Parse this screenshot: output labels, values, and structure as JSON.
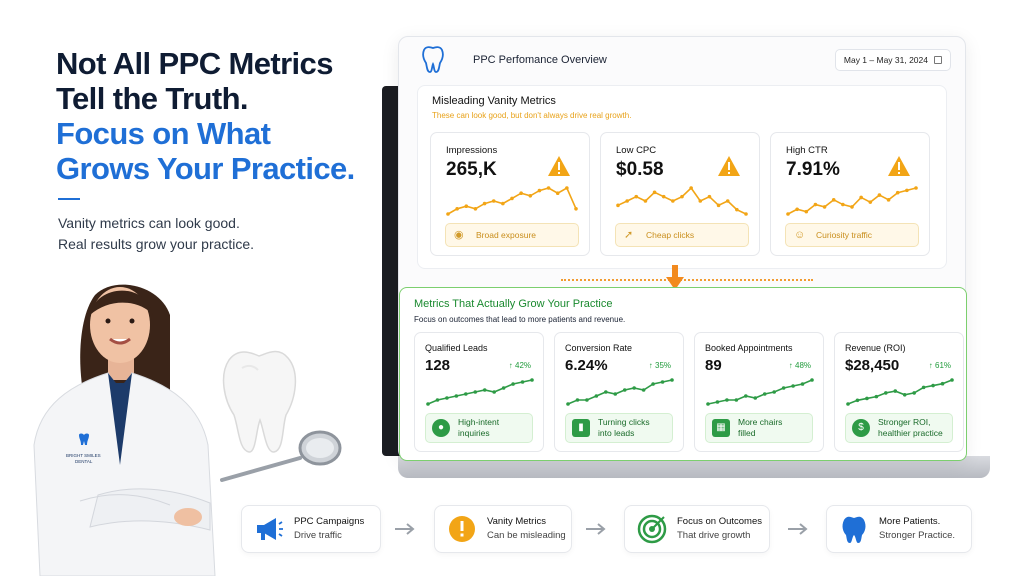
{
  "headline": {
    "line1": "Not All PPC Metrics",
    "line2": "Tell the Truth.",
    "line3": "Focus on What",
    "line4": "Grows Your Practice."
  },
  "subtext": {
    "line1": "Vanity metrics can look good.",
    "line2": "Real results grow your practice."
  },
  "coat_badge": {
    "line1": "BRIGHT SMILES",
    "line2": "DENTAL"
  },
  "dashboard": {
    "title": "PPC Perfomance Overview",
    "date_range": "May 1 – May 31, 2024",
    "vanity": {
      "title": "Misleading Vanity Metrics",
      "subtitle": "These can look good, but don't always drive real growth.",
      "cards": [
        {
          "label": "Impressions",
          "value": "265,K",
          "tag": "Broad exposure",
          "tag_icon": "eye-icon",
          "trend": [
            3,
            4,
            4.5,
            4,
            5,
            5.5,
            5,
            6,
            7,
            6.5,
            7.5,
            8,
            7,
            8,
            4
          ]
        },
        {
          "label": "Low CPC",
          "value": "$0.58",
          "tag": "Cheap clicks",
          "tag_icon": "cursor-icon",
          "trend": [
            4,
            5,
            6,
            5,
            7,
            6,
            5,
            6,
            8,
            5,
            6,
            4,
            5,
            3,
            2
          ]
        },
        {
          "label": "High CTR",
          "value": "7.91%",
          "tag": "Curiosity traffic",
          "tag_icon": "users-icon",
          "trend": [
            3,
            4,
            3.5,
            5,
            4.5,
            6,
            5,
            4.5,
            6.5,
            5.5,
            7,
            6,
            7.5,
            8,
            8.5
          ]
        }
      ]
    },
    "growth": {
      "title": "Metrics That Actually Grow Your Practice",
      "subtitle": "Focus on outcomes that lead to more patients and revenue.",
      "cards": [
        {
          "label": "Qualified Leads",
          "value": "128",
          "delta": "↑ 42%",
          "tag1": "High-intent",
          "tag2": "inquiries",
          "tag_icon": "person-icon",
          "trend": [
            2,
            3,
            3.5,
            4,
            4.5,
            5,
            5.5,
            5,
            6,
            7,
            7.5,
            8
          ]
        },
        {
          "label": "Conversion Rate",
          "value": "6.24%",
          "delta": "↑ 35%",
          "tag1": "Turning clicks",
          "tag2": "into leads",
          "tag_icon": "bar-chart-icon",
          "trend": [
            2,
            3,
            3,
            4,
            5,
            4.5,
            5.5,
            6,
            5.5,
            7,
            7.5,
            8
          ]
        },
        {
          "label": "Booked Appointments",
          "value": "89",
          "delta": "↑ 48%",
          "tag1": "More chairs",
          "tag2": "filled",
          "tag_icon": "calendar-icon",
          "trend": [
            2,
            2.5,
            3,
            3,
            4,
            3.5,
            4.5,
            5,
            6,
            6.5,
            7,
            8
          ]
        },
        {
          "label": "Revenue (ROI)",
          "value": "$28,450",
          "delta": "↑ 61%",
          "tag1": "Stronger ROI,",
          "tag2": "healthier practice",
          "tag_icon": "dollar-icon",
          "trend": [
            2,
            3,
            3.5,
            4,
            5,
            5.5,
            4.5,
            5,
            6.5,
            7,
            7.5,
            8.5
          ]
        }
      ]
    }
  },
  "flow": [
    {
      "title": "PPC Campaigns",
      "subtitle": "Drive traffic",
      "icon": "megaphone-icon"
    },
    {
      "title": "Vanity Metrics",
      "subtitle": "Can be misleading",
      "icon": "warning-icon"
    },
    {
      "title": "Focus on Outcomes",
      "subtitle": "That drive growth",
      "icon": "target-icon"
    },
    {
      "title": "More Patients.",
      "subtitle": "Stronger Practice.",
      "icon": "tooth-icon"
    }
  ],
  "colors": {
    "brand_blue": "#1f6fd6",
    "warning_orange": "#f2a516",
    "growth_green": "#2e9b46",
    "headline_dark": "#0f1c33"
  }
}
